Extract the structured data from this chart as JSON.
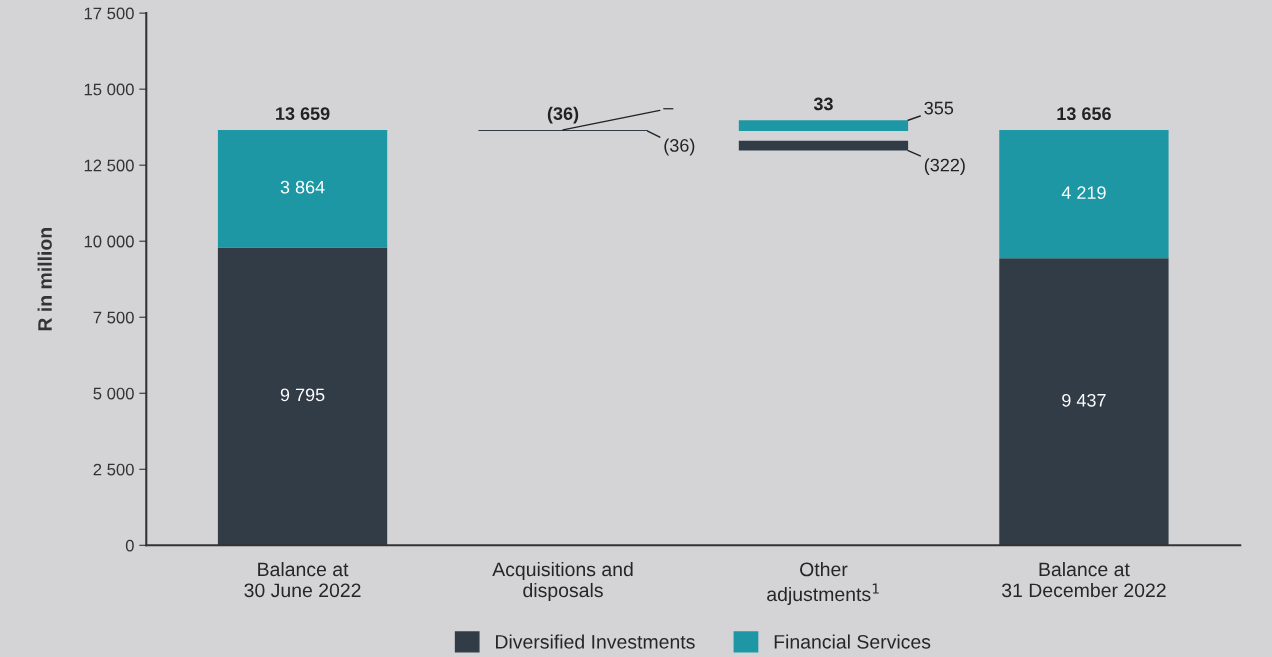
{
  "chart_data": {
    "type": "bar",
    "stacked": true,
    "categories": [
      "Balance at\n30 June 2022",
      "Acquisitions and\ndisposals",
      "Other\nadjustments$^{1}$",
      "Balance at\n31 December 2022"
    ],
    "series": [
      {
        "name": "Diversified Investments",
        "color": "#323c47",
        "values": [
          9795,
          -36,
          -322,
          9437
        ],
        "base": [
          0,
          13659,
          13301,
          0
        ],
        "value_labels": [
          "9 795",
          "(36)",
          "(322)",
          "9 437"
        ]
      },
      {
        "name": "Financial Services",
        "color": "#1e97a5",
        "values": [
          3864,
          null,
          355,
          4219
        ],
        "base": [
          9795,
          null,
          13623,
          9437
        ],
        "value_labels": [
          "3 864",
          null,
          "355",
          "4 219"
        ]
      }
    ],
    "annotations": [
      {
        "text": "–",
        "x": "Acquisitions and\ndisposals",
        "y": 13659
      }
    ],
    "totals": [
      "13 659",
      "(36)",
      "33",
      "13 656"
    ],
    "ylabel": "R in million",
    "ylim": [
      0,
      17500
    ],
    "yticks": [
      0,
      {
        "value": 2500,
        "label": "2 500"
      },
      {
        "value": 5000,
        "label": "5 000"
      },
      {
        "value": 7500,
        "label": "7 500"
      },
      {
        "value": 10000,
        "label": "10 000"
      },
      {
        "value": 12500,
        "label": "12 500"
      },
      {
        "value": 15000,
        "label": "15 000"
      },
      {
        "value": 17500,
        "label": "17 500"
      }
    ],
    "grid": false,
    "legend": "bottom"
  }
}
